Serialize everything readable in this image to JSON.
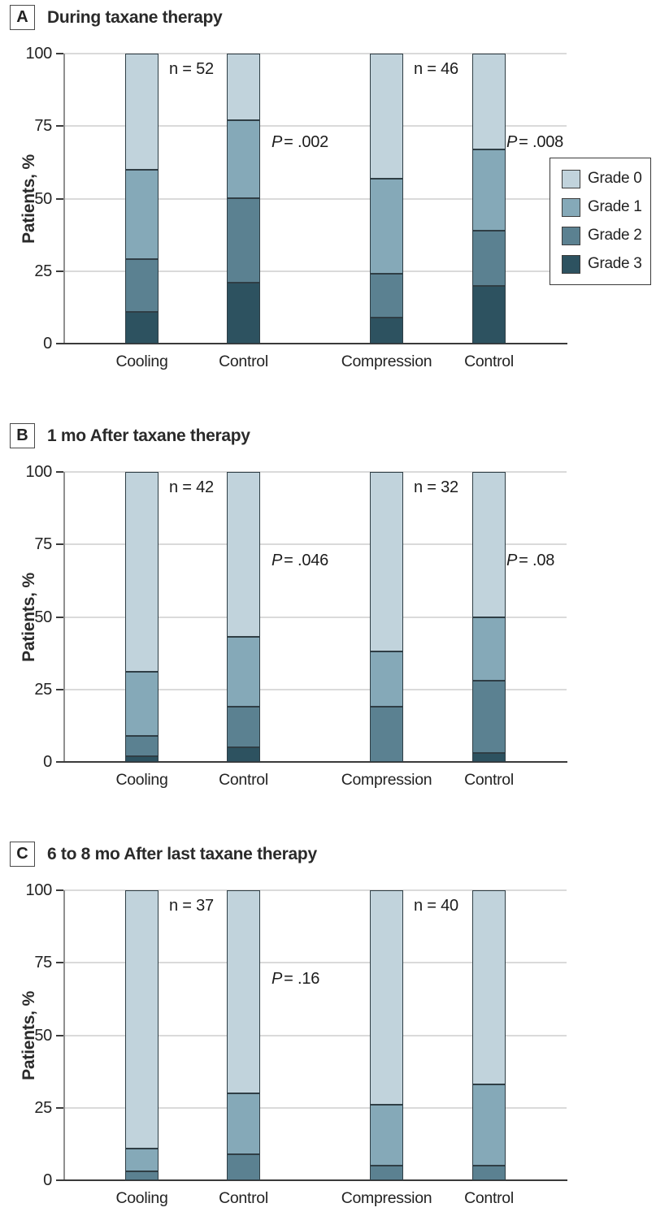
{
  "figure": {
    "y_axis_label": "Patients, %",
    "y_ticks": [
      "0",
      "25",
      "50",
      "75",
      "100"
    ],
    "ylim": [
      0,
      100
    ],
    "legend": {
      "position": "right-of-panel-A",
      "items": [
        {
          "label": "Grade 0",
          "color": "#c1d3dc"
        },
        {
          "label": "Grade 1",
          "color": "#85a9b8"
        },
        {
          "label": "Grade 2",
          "color": "#5b8191"
        },
        {
          "label": "Grade 3",
          "color": "#2d5260"
        }
      ]
    },
    "colors": {
      "grade0": "#c1d3dc",
      "grade1": "#85a9b8",
      "grade2": "#5b8191",
      "grade3": "#2d5260",
      "segment_border": "#2f3e45",
      "gridline": "#dadada",
      "axis": "#3a3a3a"
    }
  },
  "chart_data": [
    {
      "type": "bar",
      "stacked": true,
      "panel_label": "A",
      "title": "During taxane therapy",
      "categories": [
        "Cooling",
        "Control",
        "Compression",
        "Control"
      ],
      "series": [
        {
          "name": "Grade 0",
          "color": "#c1d3dc",
          "values": [
            40,
            23,
            43,
            33
          ]
        },
        {
          "name": "Grade 1",
          "color": "#85a9b8",
          "values": [
            31,
            27,
            33,
            28
          ]
        },
        {
          "name": "Grade 2",
          "color": "#5b8191",
          "values": [
            18,
            29,
            15,
            19
          ]
        },
        {
          "name": "Grade 3",
          "color": "#2d5260",
          "values": [
            11,
            21,
            9,
            20
          ]
        }
      ],
      "xlabel": "",
      "ylabel": "Patients, %",
      "ylim": [
        0,
        100
      ],
      "grid": true,
      "annotations": {
        "n": [
          {
            "text": "n = 52",
            "after_category": "Cooling"
          },
          {
            "text": "n = 46",
            "after_category": "Compression"
          }
        ],
        "p": [
          {
            "symbol": "P",
            "text": "= .002",
            "comparison": "Cooling vs Control"
          },
          {
            "symbol": "P",
            "text": "= .008",
            "comparison": "Compression vs Control"
          }
        ]
      }
    },
    {
      "type": "bar",
      "stacked": true,
      "panel_label": "B",
      "title": "1 mo After taxane therapy",
      "categories": [
        "Cooling",
        "Control",
        "Compression",
        "Control"
      ],
      "series": [
        {
          "name": "Grade 0",
          "color": "#c1d3dc",
          "values": [
            69,
            57,
            62,
            50
          ]
        },
        {
          "name": "Grade 1",
          "color": "#85a9b8",
          "values": [
            22,
            24,
            19,
            22
          ]
        },
        {
          "name": "Grade 2",
          "color": "#5b8191",
          "values": [
            7,
            14,
            19,
            25
          ]
        },
        {
          "name": "Grade 3",
          "color": "#2d5260",
          "values": [
            2,
            5,
            0,
            3
          ]
        }
      ],
      "xlabel": "",
      "ylabel": "Patients, %",
      "ylim": [
        0,
        100
      ],
      "grid": true,
      "annotations": {
        "n": [
          {
            "text": "n = 42",
            "after_category": "Cooling"
          },
          {
            "text": "n = 32",
            "after_category": "Compression"
          }
        ],
        "p": [
          {
            "symbol": "P",
            "text": "= .046",
            "comparison": "Cooling vs Control"
          },
          {
            "symbol": "P",
            "text": "= .08",
            "comparison": "Compression vs Control"
          }
        ]
      }
    },
    {
      "type": "bar",
      "stacked": true,
      "panel_label": "C",
      "title": "6 to 8 mo After last taxane therapy",
      "categories": [
        "Cooling",
        "Control",
        "Compression",
        "Control"
      ],
      "series": [
        {
          "name": "Grade 0",
          "color": "#c1d3dc",
          "values": [
            89,
            70,
            74,
            67
          ]
        },
        {
          "name": "Grade 1",
          "color": "#85a9b8",
          "values": [
            8,
            21,
            21,
            28
          ]
        },
        {
          "name": "Grade 2",
          "color": "#5b8191",
          "values": [
            3,
            9,
            5,
            5
          ]
        },
        {
          "name": "Grade 3",
          "color": "#2d5260",
          "values": [
            0,
            0,
            0,
            0
          ]
        }
      ],
      "xlabel": "",
      "ylabel": "Patients, %",
      "ylim": [
        0,
        100
      ],
      "grid": true,
      "annotations": {
        "n": [
          {
            "text": "n = 37",
            "after_category": "Cooling"
          },
          {
            "text": "n = 40",
            "after_category": "Compression"
          }
        ],
        "p": [
          {
            "symbol": "P",
            "text": "= .16",
            "comparison": "Cooling vs Control"
          }
        ]
      }
    }
  ]
}
